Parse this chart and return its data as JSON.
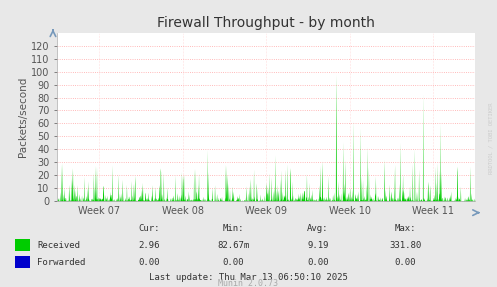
{
  "title": "Firewall Throughput - by month",
  "ylabel": "Packets/second",
  "background_color": "#e8e8e8",
  "plot_bg_color": "#ffffff",
  "grid_color": "#ff9999",
  "yticks": [
    0,
    10,
    20,
    30,
    40,
    50,
    60,
    70,
    80,
    90,
    100,
    110,
    120
  ],
  "ylim": [
    0,
    130
  ],
  "xtick_labels": [
    "Week 07",
    "Week 08",
    "Week 09",
    "Week 10",
    "Week 11"
  ],
  "stats_headers": [
    "Cur:",
    "Min:",
    "Avg:",
    "Max:"
  ],
  "stats_received": [
    "2.96",
    "82.67m",
    "9.19",
    "331.80"
  ],
  "stats_forwarded": [
    "0.00",
    "0.00",
    "0.00",
    "0.00"
  ],
  "last_update": "Last update: Thu Mar 13 06:50:10 2025",
  "munin_version": "Munin 2.0.73",
  "rrdtool_text": "RRDTOOL / TOBI OETIKER",
  "received_color": "#00cc00",
  "forwarded_color": "#0000cc",
  "title_fontsize": 10,
  "axis_label_fontsize": 7.5,
  "tick_fontsize": 7,
  "stats_fontsize": 6.5,
  "num_points": 1200,
  "seed": 99
}
